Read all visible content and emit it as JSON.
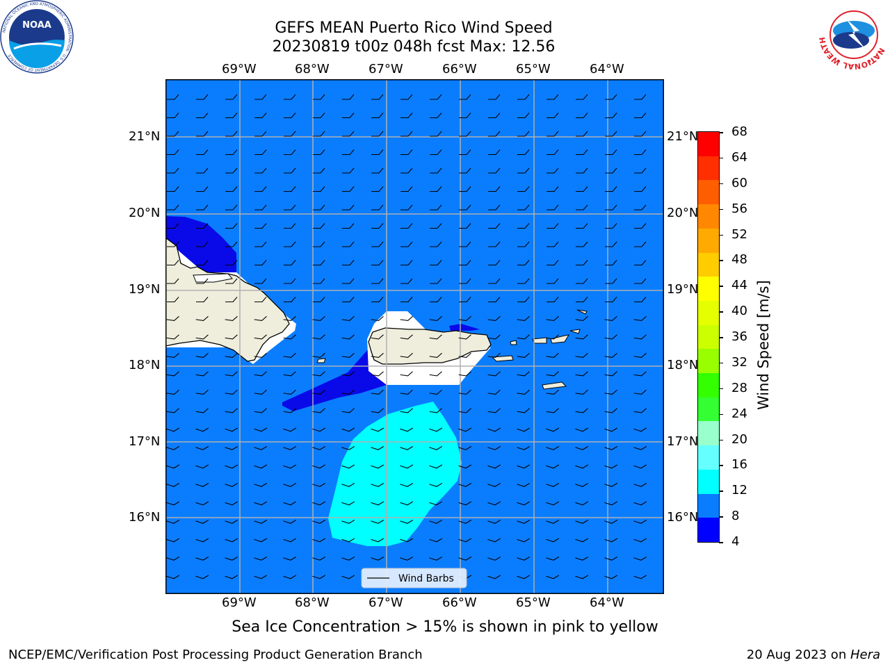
{
  "title": {
    "line1": "GEFS MEAN Puerto Rico Wind Speed",
    "line2": "20230819 t00z 048h fcst   Max: 12.56"
  },
  "map": {
    "lon_labels": [
      "69°W",
      "68°W",
      "67°W",
      "66°W",
      "65°W",
      "64°W"
    ],
    "lat_labels": [
      "21°N",
      "20°N",
      "19°N",
      "18°N",
      "17°N",
      "16°N"
    ],
    "legend_label": "Wind Barbs",
    "colors": {
      "water_8_12": "#0a7dff",
      "band_4_8": "#0a0ae8",
      "band_12_16": "#00ffff",
      "land": "#efeedd",
      "grid": "#b0b0b0"
    }
  },
  "colorbar": {
    "title": "Wind Speed [m/s]",
    "ticks": [
      "68",
      "64",
      "60",
      "56",
      "52",
      "48",
      "44",
      "40",
      "36",
      "32",
      "28",
      "24",
      "20",
      "16",
      "12",
      "8",
      "4"
    ],
    "colors_top_to_bottom": [
      "#ff0000",
      "#ff2f00",
      "#ff5e00",
      "#ff8800",
      "#ffaa00",
      "#ffcc00",
      "#ffff00",
      "#e5ff00",
      "#ccff00",
      "#99ff00",
      "#33ff00",
      "#33ff33",
      "#99ffcc",
      "#66ffff",
      "#00ffff",
      "#0a7dff",
      "#0000ff"
    ]
  },
  "logos": {
    "noaa_text": "NOAA",
    "noaa_ring": "NATIONAL OCEANIC AND ATMOSPHERIC ADMINISTRATION · U.S. DEPARTMENT OF COMMERCE",
    "nws_ring": "NATIONAL WEATHER SERVICE"
  },
  "subcaption": "Sea Ice Concentration > 15% is shown in pink to yellow",
  "footer": {
    "left": "NCEP/EMC/Verification Post Processing Product Generation Branch",
    "right_prefix": "20 Aug 2023 on ",
    "right_host": "Hera"
  }
}
